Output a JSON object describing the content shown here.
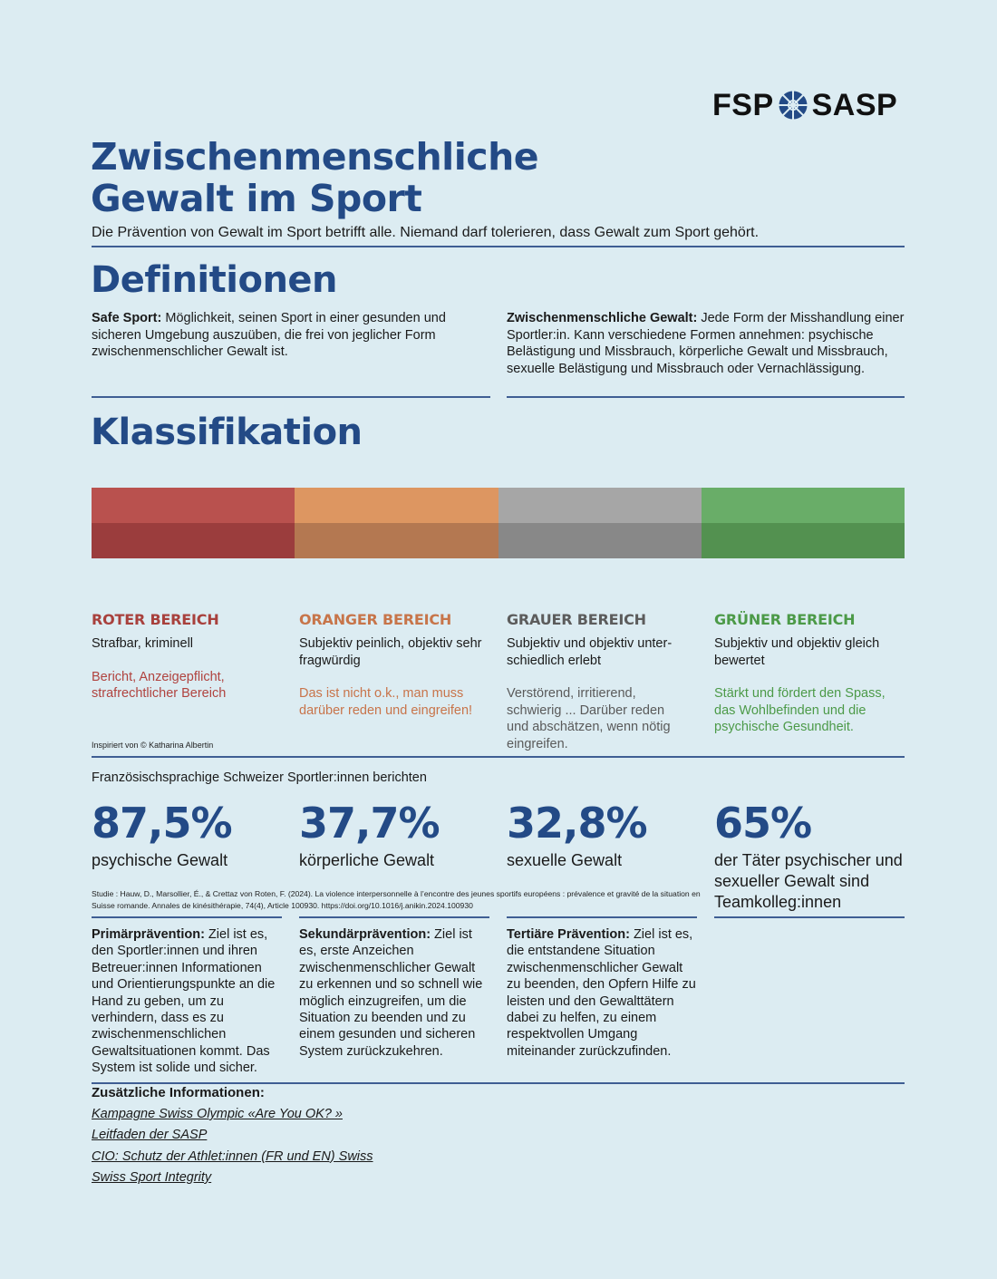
{
  "logo": {
    "left": "FSP",
    "right": "SASP"
  },
  "title": {
    "line1": "Zwischenmenschliche",
    "line2": "Gewalt im Sport"
  },
  "subtitle": "Die Prävention von Gewalt im Sport betrifft alle. Niemand darf tolerieren, dass Gewalt zum Sport gehört.",
  "definitions": {
    "heading": "Definitionen",
    "safe_sport": {
      "term": "Safe Sport:",
      "text": " Möglichkeit, seinen Sport in einer gesunden und sicheren Umgebung auszuüben, die frei von jeglicher Form zwischenmenschlicher Gewalt ist."
    },
    "interpersonal": {
      "term": "Zwischenmenschliche Gewalt:",
      "text": " Jede Form der Misshandlung einer Sportler:in. Kann verschiedene Formen annehmen: psychische Belästigung und Missbrauch, körperliche Gewalt und Missbrauch, sexuelle Belästigung und Missbrauch oder Vernachlässigung."
    }
  },
  "classification": {
    "heading": "Klassifikation",
    "colors": {
      "red": [
        "#b9514e",
        "#9b3d3d"
      ],
      "orange": [
        "#dd9661",
        "#b47851"
      ],
      "grey": [
        "#a6a6a6",
        "#888888"
      ],
      "green": [
        "#69ad68",
        "#539150"
      ]
    },
    "zones": [
      {
        "title": "ROTER BEREICH",
        "desc": "Strafbar, kriminell",
        "note": "Bericht, Anzeigepflicht, strafrechtlicher Bereich",
        "title_color": "#a8413d",
        "note_color": "#b0433f"
      },
      {
        "title": "ORANGER BEREICH",
        "desc": "Subjektiv peinlich, objektiv sehr fragwürdig",
        "note": "Das ist nicht o.k., man muss darüber reden und eingreifen!",
        "title_color": "#c7754a",
        "note_color": "#c8744a"
      },
      {
        "title": "GRAUER BEREICH",
        "desc": "Subjektiv und objektiv unter-schiedlich erlebt",
        "note": "Verstörend, irritierend, schwierig ... Darüber reden und abschätzen, wenn nötig eingreifen.",
        "title_color": "#5c5c5c",
        "note_color": "#5a5a5a"
      },
      {
        "title": "GRÜNER BEREICH",
        "desc": "Subjektiv und objektiv gleich bewertet",
        "note": "Stärkt und fördert den Spass, das Wohlbefinden und die psychische Gesundheit.",
        "title_color": "#4c9a48",
        "note_color": "#4c9a48"
      }
    ],
    "credit": "Inspiriert von © Katharina Albertin"
  },
  "stats": {
    "intro": "Französischsprachige Schweizer Sportler:innen berichten",
    "items": [
      {
        "value": "87,5%",
        "label": "psychische Gewalt"
      },
      {
        "value": "37,7%",
        "label": "körperliche Gewalt"
      },
      {
        "value": "32,8%",
        "label": "sexuelle Gewalt"
      },
      {
        "value": "65%",
        "label": "der Täter psychischer und sexueller Gewalt sind Teamkolleg:innen"
      }
    ],
    "study": "Studie : Hauw, D., Marsollier, É., & Crettaz von Roten, F. (2024). La violence interpersonnelle à l’encontre des jeunes sportifs européens : prévalence et gravité de la situation en Suisse romande. Annales de kinésithérapie, 74(4), Article 100930. https://doi.org/10.1016/j.anikin.2024.100930"
  },
  "prevention": [
    {
      "term": "Primärprävention:",
      "text": " Ziel ist es, den Sportler:innen und ihren Betreuer:innen Informationen und Orientierungspunkte an die Hand zu geben, um zu verhindern, dass es zu zwischenmenschlichen Gewaltsituationen kommt. Das System ist solide und sicher."
    },
    {
      "term": "Sekundärprävention:",
      "text": " Ziel ist es, erste Anzeichen zwischenmenschlicher Gewalt zu erkennen und so schnell wie möglich einzugreifen, um die Situation zu beenden und zu einem gesunden und sicheren System zurückzukehren."
    },
    {
      "term": "Tertiäre Prävention:",
      "text": " Ziel ist es, die entstandene Situation zwischenmenschlicher Gewalt zu beenden, den Opfern Hilfe zu leisten und den Gewalttätern dabei zu helfen, zu einem respektvollen Umgang miteinander zurückzufinden."
    }
  ],
  "additional": {
    "heading": "Zusätzliche Informationen:",
    "links": [
      "Kampagne Swiss Olympic «Are You OK? »",
      "Leitfaden der SASP",
      "CIO: Schutz der Athlet:innen (FR und EN) Swiss",
      "Swiss Sport Integrity"
    ]
  }
}
